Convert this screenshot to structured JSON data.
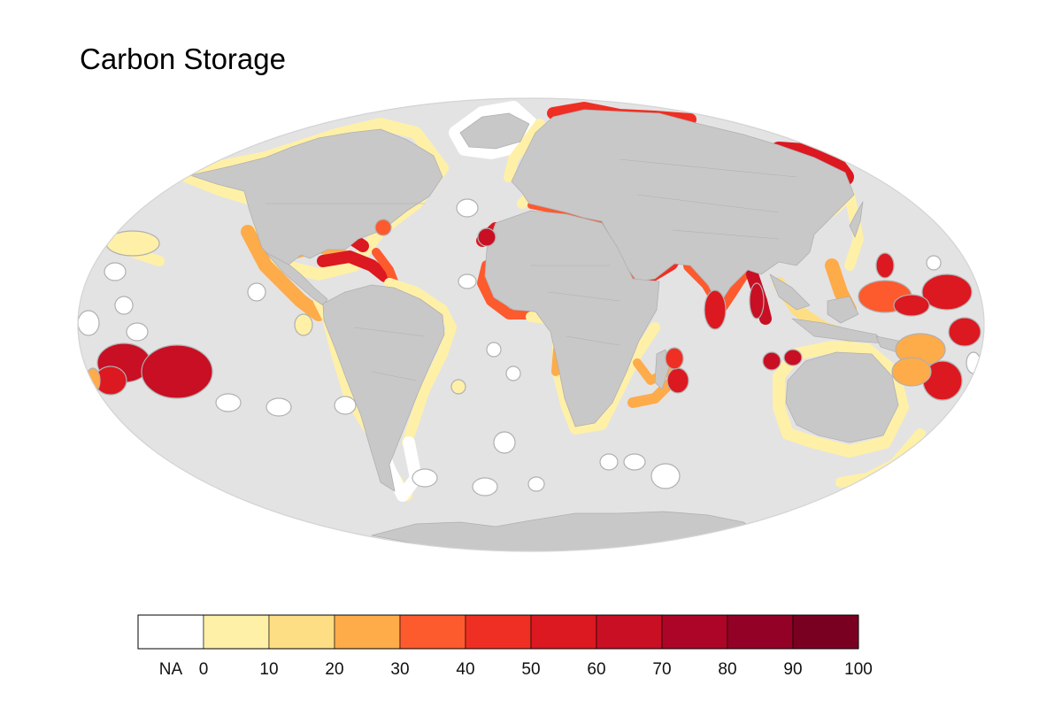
{
  "title": "Carbon Storage",
  "colors": {
    "ocean": "#e3e3e3",
    "land": "#c8c8c8",
    "border": "#b0b0b0",
    "na": "#ffffff",
    "bins": [
      "#fff0a8",
      "#fede84",
      "#feab4a",
      "#fd5a2e",
      "#ef2f23",
      "#dc1820",
      "#c80f24",
      "#ad0527",
      "#930226",
      "#7a0022"
    ]
  },
  "legend": {
    "na_label": "NA",
    "ticks": [
      "0",
      "10",
      "20",
      "30",
      "40",
      "50",
      "60",
      "70",
      "80",
      "90",
      "100"
    ]
  }
}
